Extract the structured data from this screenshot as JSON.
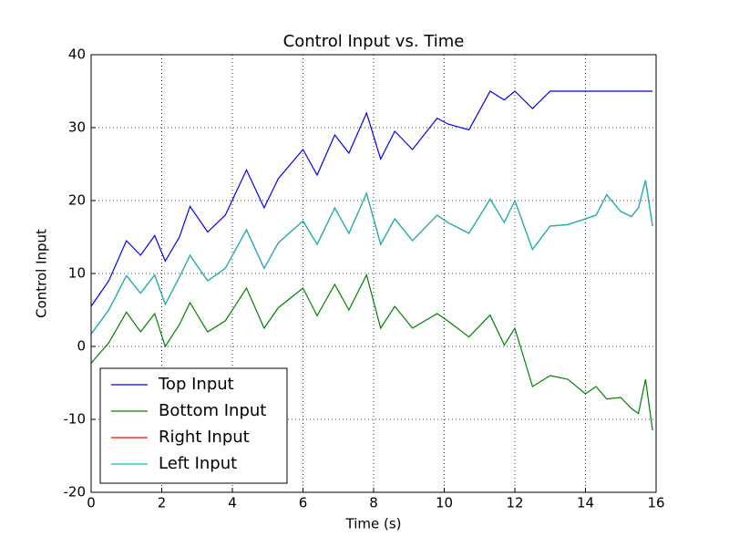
{
  "chart_data": {
    "type": "line",
    "title": "Control Input vs. Time",
    "x_label": "Time (s)",
    "y_label": "Control Input",
    "x": [
      0,
      0.5,
      1.0,
      1.4,
      1.8,
      2.1,
      2.5,
      2.8,
      3.3,
      3.8,
      4.4,
      4.9,
      5.3,
      6.0,
      6.4,
      6.9,
      7.3,
      7.8,
      8.2,
      8.6,
      9.1,
      9.8,
      10.1,
      10.7,
      11.3,
      11.7,
      12.0,
      12.5,
      13.0,
      13.5,
      14.0,
      14.3,
      14.6,
      15.0,
      15.3,
      15.5,
      15.7,
      15.9
    ],
    "series": [
      {
        "name": "Top Input",
        "color": "#0000ff",
        "values": [
          5.5,
          9,
          14.5,
          12.5,
          15.2,
          11.7,
          15,
          19.2,
          15.7,
          18,
          24.2,
          19,
          23,
          27,
          23.5,
          29,
          26.5,
          32,
          25.7,
          29.5,
          27,
          31.3,
          30.5,
          29.7,
          35,
          33.8,
          35,
          32.6,
          35,
          35,
          35,
          35,
          35,
          35,
          35,
          35,
          35,
          35
        ]
      },
      {
        "name": "Bottom Input",
        "color": "#008000",
        "values": [
          -2.3,
          0.5,
          4.7,
          2,
          4.5,
          0,
          3,
          6,
          2,
          3.5,
          8,
          2.5,
          5.3,
          8,
          4.2,
          8.5,
          5,
          9.8,
          2.5,
          5.5,
          2.5,
          4.5,
          3.5,
          1.3,
          4.3,
          0.2,
          2.5,
          -5.5,
          -4,
          -4.5,
          -6.5,
          -5.5,
          -7.2,
          -7,
          -8.5,
          -9.2,
          -4.5,
          -11.5
        ]
      },
      {
        "name": "Right Input",
        "color": "#ff0000",
        "values": [
          1.7,
          5,
          9.7,
          7.3,
          9.8,
          5.8,
          9.5,
          12.5,
          9,
          10.7,
          16,
          10.7,
          14.2,
          17.2,
          14,
          19,
          15.5,
          21,
          14,
          17.5,
          14.5,
          18,
          17,
          15.5,
          20.2,
          17,
          20,
          13.3,
          16.5,
          16.7,
          17.5,
          18,
          20.8,
          18.5,
          17.8,
          19,
          22.8,
          16.5
        ]
      },
      {
        "name": "Left Input",
        "color": "#00bfbf",
        "values": [
          1.7,
          5,
          9.7,
          7.3,
          9.8,
          5.8,
          9.5,
          12.5,
          9,
          10.7,
          16,
          10.7,
          14.2,
          17.2,
          14,
          19,
          15.5,
          21,
          14,
          17.5,
          14.5,
          18,
          17,
          15.5,
          20.2,
          17,
          20,
          13.3,
          16.5,
          16.7,
          17.5,
          18,
          20.8,
          18.5,
          17.8,
          19,
          22.8,
          16.5
        ]
      }
    ],
    "xlim": [
      0,
      16
    ],
    "xticks": [
      0,
      2,
      4,
      6,
      8,
      10,
      12,
      14,
      16
    ],
    "ylim": [
      -20,
      40
    ],
    "yticks": [
      -20,
      -10,
      0,
      10,
      20,
      30,
      40
    ],
    "grid": true,
    "legend": "lower left"
  }
}
